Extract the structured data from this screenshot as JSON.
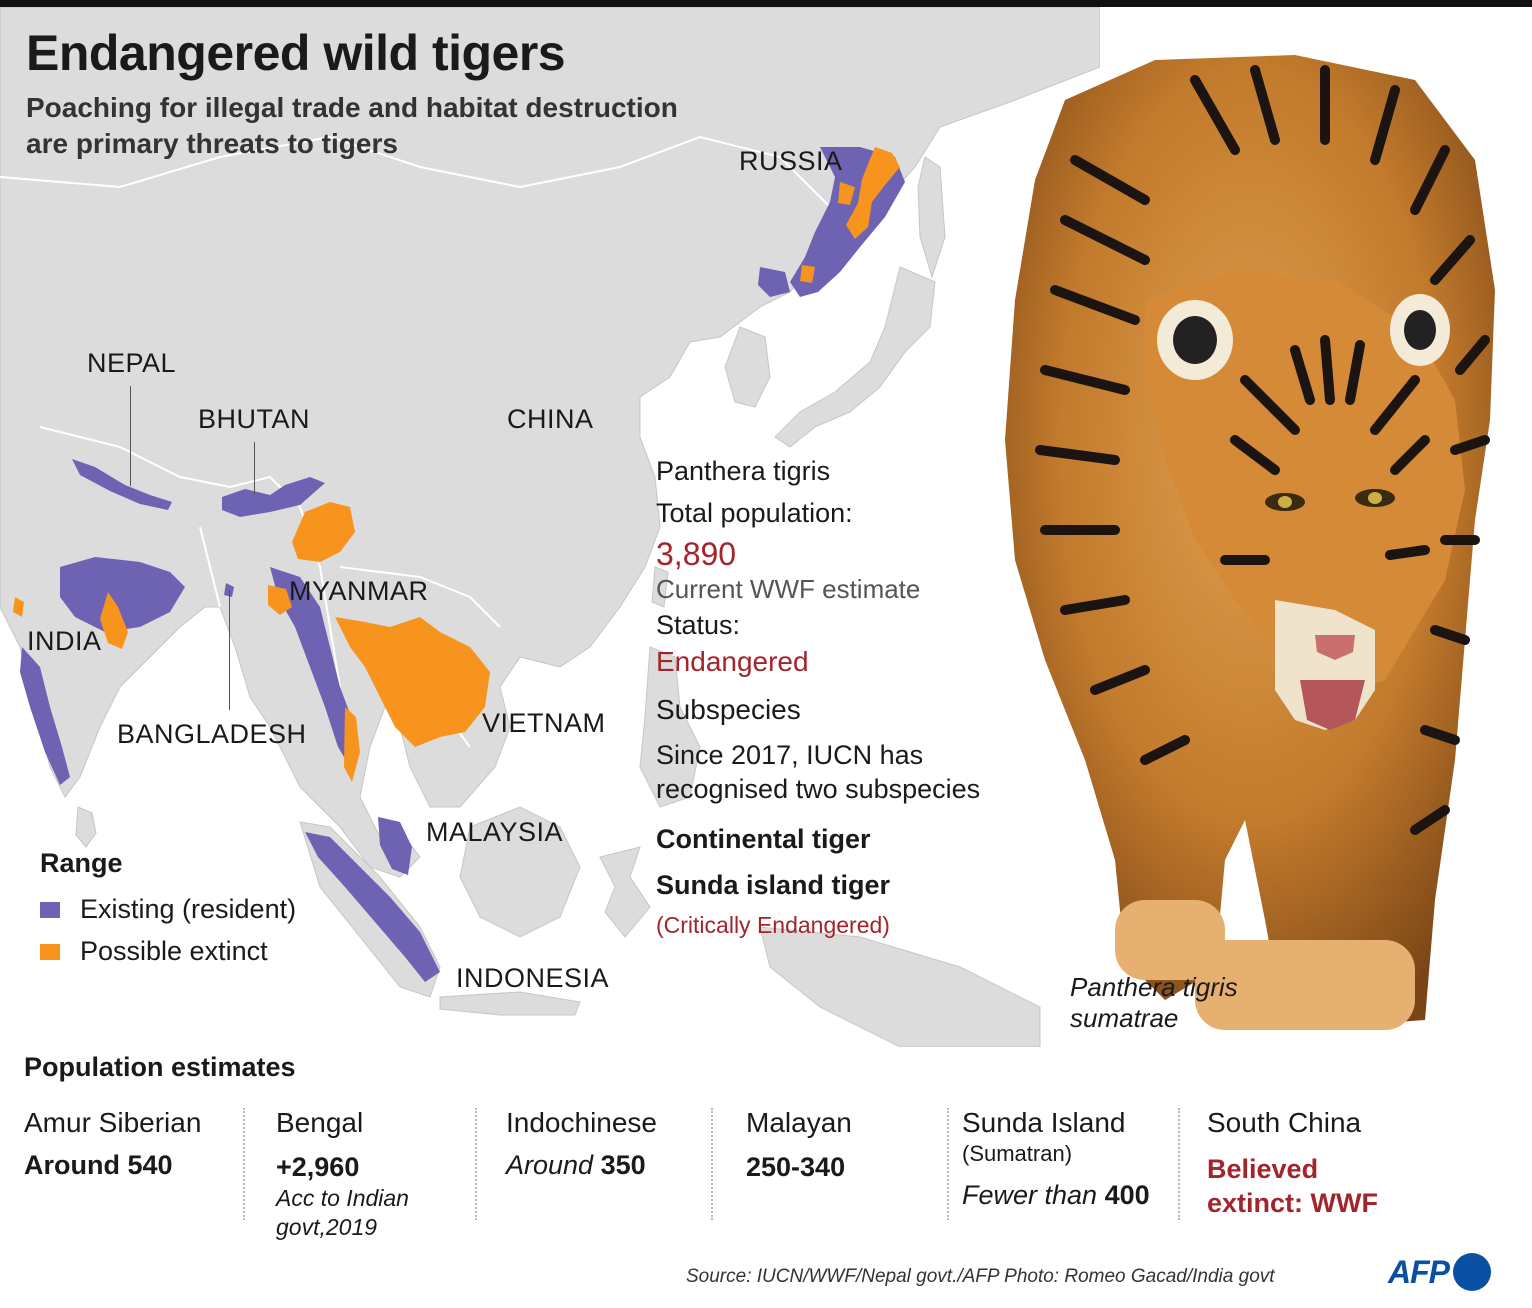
{
  "header": {
    "title": "Endangered wild tigers",
    "subtitle": "Poaching for illegal trade and habitat destruction are primary threats to tigers"
  },
  "colors": {
    "existing": "#6e63b3",
    "extinct": "#f7941d",
    "accent_red": "#a3242b",
    "land": "#dcdcdc",
    "sea": "#ffffff",
    "afp_blue": "#0b4fa3"
  },
  "map": {
    "labels": {
      "russia": "RUSSIA",
      "nepal": "NEPAL",
      "bhutan": "BHUTAN",
      "china": "CHINA",
      "myanmar": "MYANMAR",
      "india": "INDIA",
      "bangladesh": "BANGLADESH",
      "vietnam": "VIETNAM",
      "malaysia": "MALAYSIA",
      "indonesia": "INDONESIA"
    }
  },
  "legend": {
    "title": "Range",
    "existing": "Existing (resident)",
    "extinct": "Possible extinct"
  },
  "info": {
    "species": "Panthera tigris",
    "total_label": "Total population:",
    "total_value": "3,890",
    "total_note": "Current WWF estimate",
    "status_label": "Status:",
    "status_value": "Endangered",
    "subspecies_label": "Subspecies",
    "subspecies_text_1": "Since 2017, IUCN has",
    "subspecies_text_2": "recognised two subspecies",
    "sub_1": "Continental tiger",
    "sub_2": "Sunda island tiger",
    "sub_2_status": "(Critically Endangered)"
  },
  "photo": {
    "caption_1": "Panthera tigris",
    "caption_2": "sumatrae"
  },
  "population": {
    "header": "Population estimates",
    "amur": {
      "name": "Amur Siberian",
      "value": "Around 540"
    },
    "bengal": {
      "name": "Bengal",
      "value": "+2,960",
      "note_1": "Acc to Indian",
      "note_2": "govt,2019"
    },
    "indochinese": {
      "name": "Indochinese",
      "prefix": "Around",
      "value": "350"
    },
    "malayan": {
      "name": "Malayan",
      "value": "250-340"
    },
    "sunda": {
      "name": "Sunda Island",
      "sub": "(Sumatran)",
      "prefix": "Fewer than",
      "value": "400"
    },
    "south_china": {
      "name": "South China",
      "value_1": "Believed",
      "value_2": "extinct: WWF"
    }
  },
  "footer": {
    "source": "Source: IUCN/WWF/Nepal govt./AFP Photo: Romeo Gacad/India govt",
    "logo": "AFP"
  }
}
